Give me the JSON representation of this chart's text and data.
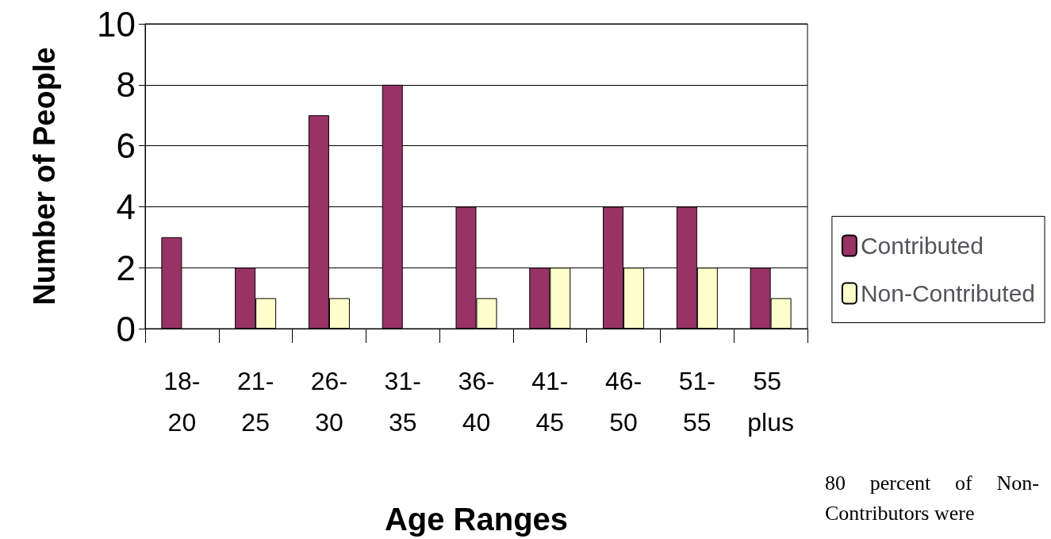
{
  "chart_data": {
    "type": "bar",
    "xlabel": "Age Ranges",
    "ylabel": "Number of People",
    "categories": [
      "18-20",
      "21-25",
      "26-30",
      "31-35",
      "36-40",
      "41-45",
      "46-50",
      "51-55",
      "55 plus"
    ],
    "series": [
      {
        "name": "Contributed",
        "color": "#993366",
        "values": [
          3,
          2,
          7,
          8,
          4,
          2,
          4,
          4,
          2
        ]
      },
      {
        "name": "Non-Contributed",
        "color": "#ffffcc",
        "values": [
          0,
          1,
          1,
          0,
          1,
          2,
          2,
          2,
          1
        ]
      }
    ],
    "ylim": [
      0,
      10
    ],
    "yticks": [
      0,
      2,
      4,
      6,
      8,
      10
    ],
    "grid": "y",
    "legend": "right",
    "annotations": [
      "80 percent of Non-Contributors were"
    ]
  }
}
